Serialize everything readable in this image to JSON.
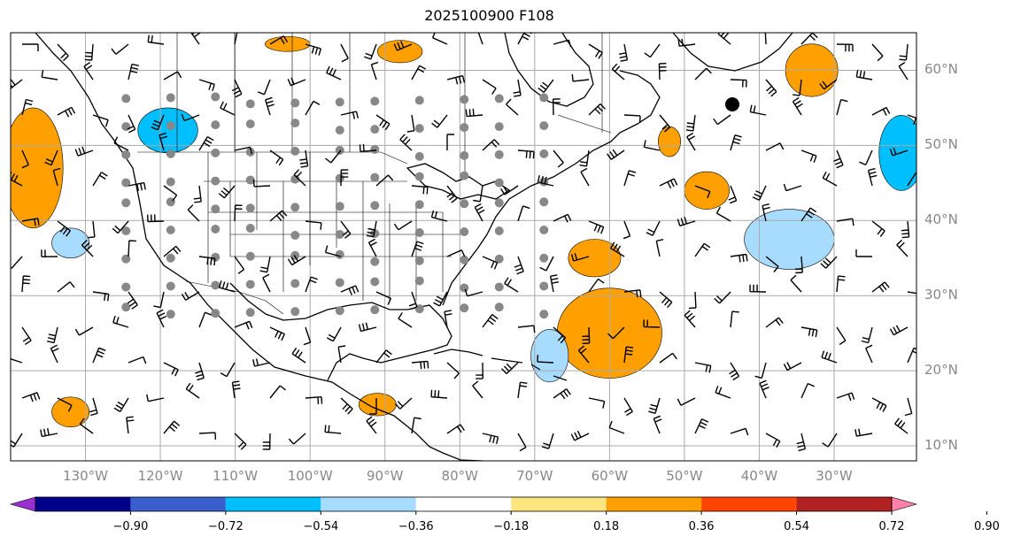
{
  "title": "2025100900 F108",
  "map": {
    "lon_range": [
      -140,
      -19
    ],
    "lat_range": [
      8,
      65
    ],
    "lat_ticks": [
      {
        "value": 10,
        "label": "10°N"
      },
      {
        "value": 20,
        "label": "20°N"
      },
      {
        "value": 30,
        "label": "30°N"
      },
      {
        "value": 40,
        "label": "40°N"
      },
      {
        "value": 50,
        "label": "50°N"
      },
      {
        "value": 60,
        "label": "60°N"
      }
    ],
    "lon_ticks": [
      {
        "value": -130,
        "label": "130°W"
      },
      {
        "value": -120,
        "label": "120°W"
      },
      {
        "value": -110,
        "label": "110°W"
      },
      {
        "value": -100,
        "label": "100°W"
      },
      {
        "value": -90,
        "label": "90°W"
      },
      {
        "value": -80,
        "label": "80°W"
      },
      {
        "value": -70,
        "label": "70°W"
      },
      {
        "value": -60,
        "label": "60°W"
      },
      {
        "value": -50,
        "label": "50°W"
      },
      {
        "value": -40,
        "label": "40°W"
      },
      {
        "value": -30,
        "label": "30°W"
      }
    ],
    "gridlines": true
  },
  "colorbar": {
    "colors": [
      "#9b30d0",
      "#00008b",
      "#3a5ecc",
      "#00bfff",
      "#a8dcff",
      "#ffffff",
      "#ffe57f",
      "#ffa000",
      "#ff4500",
      "#b22222",
      "#ff80a8"
    ],
    "ticks": [
      {
        "value": -0.9,
        "label": "−0.90"
      },
      {
        "value": -0.72,
        "label": "−0.72"
      },
      {
        "value": -0.54,
        "label": "−0.54"
      },
      {
        "value": -0.36,
        "label": "−0.36"
      },
      {
        "value": -0.18,
        "label": "−0.18"
      },
      {
        "value": 0.18,
        "label": "0.18"
      },
      {
        "value": 0.36,
        "label": "0.36"
      },
      {
        "value": 0.54,
        "label": "0.54"
      },
      {
        "value": 0.72,
        "label": "0.72"
      },
      {
        "value": 0.9,
        "label": "0.90"
      }
    ]
  },
  "anomaly_regions": [
    {
      "type": "positive",
      "level": 0.36,
      "lon": -137,
      "lat": 47,
      "rlon": 4,
      "rlat": 8
    },
    {
      "type": "negative",
      "level": -0.54,
      "lon": -119,
      "lat": 52,
      "rlon": 4,
      "rlat": 3
    },
    {
      "type": "negative",
      "level": -0.36,
      "lon": -132,
      "lat": 37,
      "rlon": 2.5,
      "rlat": 2
    },
    {
      "type": "positive",
      "level": 0.54,
      "lon": -61,
      "lat": 24,
      "rlon": 4,
      "rlat": 4
    },
    {
      "type": "positive",
      "level": 0.36,
      "lon": -60,
      "lat": 25,
      "rlon": 7,
      "rlat": 6
    },
    {
      "type": "positive",
      "level": 0.36,
      "lon": -62,
      "lat": 35,
      "rlon": 3.5,
      "rlat": 2.5
    },
    {
      "type": "negative",
      "level": -0.36,
      "lon": -68,
      "lat": 22,
      "rlon": 2.5,
      "rlat": 3.5
    },
    {
      "type": "negative",
      "level": -0.36,
      "lon": -36,
      "lat": 37.5,
      "rlon": 6,
      "rlat": 4
    },
    {
      "type": "negative",
      "level": -0.54,
      "lon": -21,
      "lat": 49,
      "rlon": 3,
      "rlat": 5
    },
    {
      "type": "positive",
      "level": 0.36,
      "lon": -47,
      "lat": 44,
      "rlon": 3,
      "rlat": 2.5
    },
    {
      "type": "positive",
      "level": 0.36,
      "lon": -33,
      "lat": 60,
      "rlon": 3.5,
      "rlat": 3.5
    },
    {
      "type": "positive",
      "level": 0.36,
      "lon": -52,
      "lat": 50.5,
      "rlon": 1.5,
      "rlat": 2
    },
    {
      "type": "positive",
      "level": 0.36,
      "lon": -132,
      "lat": 14.5,
      "rlon": 2.5,
      "rlat": 2
    },
    {
      "type": "positive",
      "level": 0.36,
      "lon": -91,
      "lat": 15.5,
      "rlon": 2.5,
      "rlat": 1.5
    },
    {
      "type": "positive",
      "level": 0.36,
      "lon": -88,
      "lat": 62.5,
      "rlon": 3,
      "rlat": 1.5
    },
    {
      "type": "positive",
      "level": 0.36,
      "lon": -103,
      "lat": 63.5,
      "rlon": 3,
      "rlat": 1
    }
  ]
}
